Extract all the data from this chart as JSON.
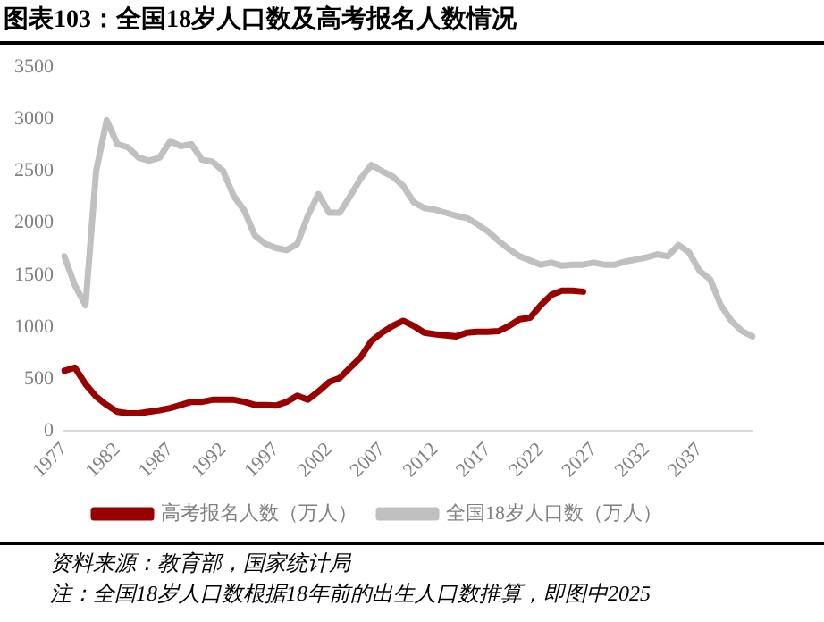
{
  "chart_data": {
    "type": "line",
    "title": "图表103：全国18岁人口数及高考报名人数情况",
    "categories": [
      "1977",
      null,
      null,
      null,
      null,
      "1982",
      null,
      null,
      null,
      null,
      "1987",
      null,
      null,
      null,
      null,
      "1992",
      null,
      null,
      null,
      null,
      "1997",
      null,
      null,
      null,
      null,
      "2002",
      null,
      null,
      null,
      null,
      "2007",
      null,
      null,
      null,
      null,
      "2012",
      null,
      null,
      null,
      null,
      "2017",
      null,
      null,
      null,
      null,
      "2022",
      null,
      null,
      null,
      null,
      "2027",
      null,
      null,
      null,
      null,
      "2032",
      null,
      null,
      null,
      null,
      "2037",
      null,
      null,
      null,
      null,
      null
    ],
    "series": [
      {
        "name": "高考报名人数（万人）",
        "color": "#990000",
        "values": [
          580,
          610,
          450,
          330,
          250,
          185,
          170,
          170,
          185,
          200,
          220,
          250,
          280,
          280,
          300,
          300,
          300,
          280,
          250,
          250,
          245,
          280,
          340,
          300,
          380,
          470,
          510,
          610,
          710,
          865,
          945,
          1010,
          1060,
          1010,
          945,
          930,
          920,
          910,
          945,
          955,
          955,
          960,
          1010,
          1075,
          1090,
          1210,
          1310,
          1350,
          1350,
          1340,
          null,
          null,
          null,
          null,
          null,
          null,
          null,
          null,
          null,
          null,
          null,
          null,
          null,
          null,
          null,
          null
        ]
      },
      {
        "name": "全国18岁人口数（万人）",
        "color": "#c0c0c0",
        "values": [
          1680,
          1400,
          1210,
          2500,
          2990,
          2760,
          2730,
          2630,
          2600,
          2630,
          2790,
          2740,
          2760,
          2610,
          2590,
          2500,
          2260,
          2120,
          1880,
          1800,
          1760,
          1740,
          1800,
          2070,
          2280,
          2100,
          2100,
          2260,
          2430,
          2560,
          2500,
          2450,
          2360,
          2200,
          2145,
          2130,
          2100,
          2070,
          2050,
          1990,
          1920,
          1830,
          1750,
          1680,
          1640,
          1600,
          1620,
          1590,
          1600,
          1600,
          1620,
          1600,
          1600,
          1630,
          1650,
          1670,
          1700,
          1680,
          1790,
          1720,
          1540,
          1460,
          1210,
          1060,
          960,
          910
        ]
      }
    ],
    "ylim": [
      0,
      3500
    ],
    "yticks": [
      0,
      500,
      1000,
      1500,
      2000,
      2500,
      3000,
      3500
    ],
    "grid": false,
    "legend": "bottom",
    "marker": "none",
    "line_style": "solid",
    "annotations": [
      "资料来源：教育部，国家统计局",
      "注：全国18岁人口数根据18年前的出生人口数推算，即图中2025"
    ]
  }
}
